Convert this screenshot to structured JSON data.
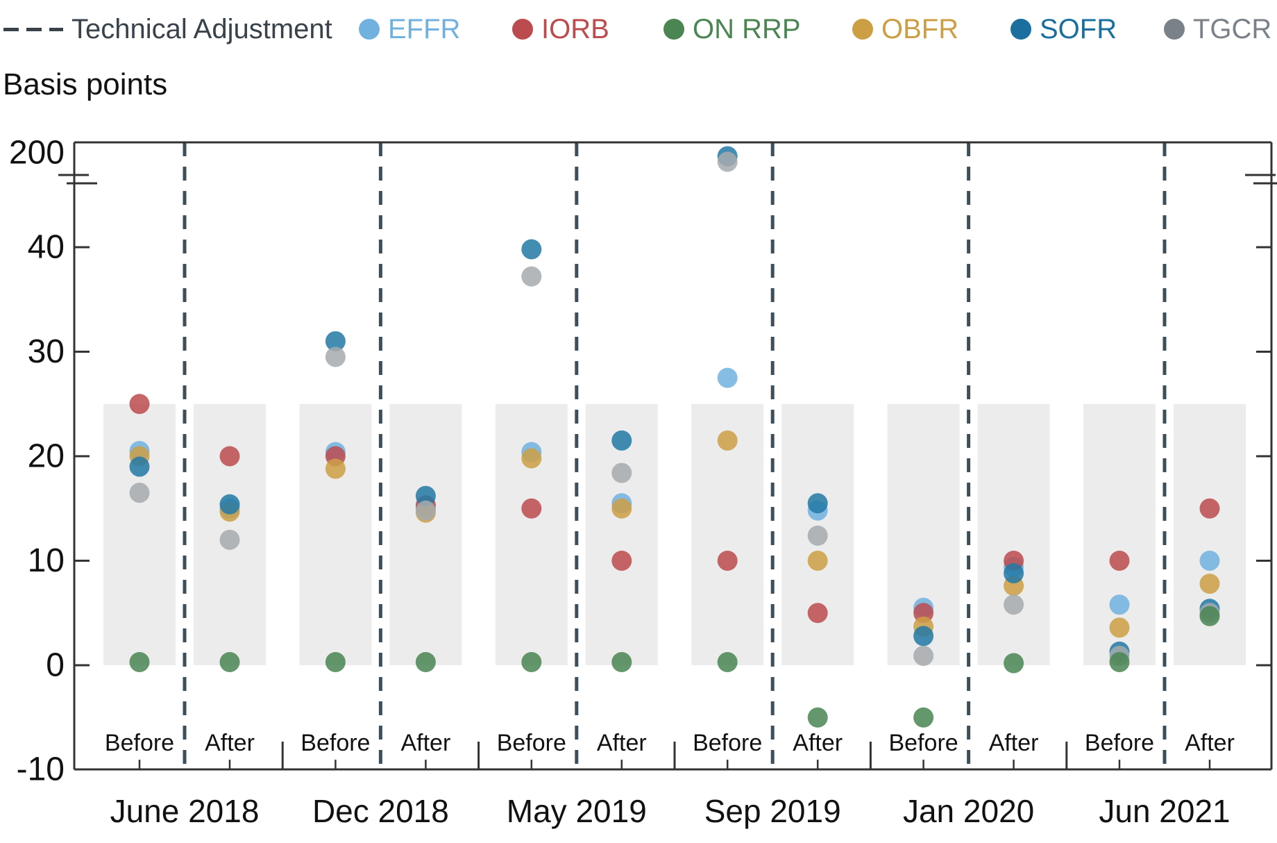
{
  "legend": {
    "technical_adjustment_label": "Technical Adjustment",
    "items": [
      {
        "id": "EFFR",
        "label": "EFFR",
        "color": "#71B1E0",
        "dot_color": "#71B1E0"
      },
      {
        "id": "IORB",
        "label": "IORB",
        "color": "#BC4B4F",
        "dot_color": "#BC4B4F"
      },
      {
        "id": "ON RRP",
        "label": "ON RRP",
        "color": "#4A8552",
        "dot_color": "#4A8552"
      },
      {
        "id": "OBFR",
        "label": "OBFR",
        "color": "#CC9F45",
        "dot_color": "#CC9F45"
      },
      {
        "id": "SOFR",
        "label": "SOFR",
        "color": "#1A6F9E",
        "dot_color": "#2279A6"
      },
      {
        "id": "TGCR",
        "label": "TGCR",
        "color": "#7A8188",
        "dot_color": "#A6AAAE"
      }
    ]
  },
  "chart_data": {
    "type": "scatter",
    "ylabel": "Basis points",
    "yticks": [
      200,
      40,
      30,
      20,
      10,
      0,
      -10
    ],
    "ylim": [
      -10,
      200
    ],
    "axis_break_between": [
      46,
      188
    ],
    "shaded_band_bp": [
      0,
      25
    ],
    "grid": false,
    "legend_position": "top",
    "column_labels": [
      "Before",
      "After"
    ],
    "series": [
      "EFFR",
      "IORB",
      "OBFR",
      "SOFR",
      "TGCR",
      "ON RRP"
    ],
    "groups": [
      {
        "date": "June 2018",
        "before": {
          "EFFR": 20.5,
          "IORB": 25,
          "ON RRP": 0.3,
          "OBFR": 20,
          "SOFR": 19,
          "TGCR": 16.5
        },
        "after": {
          "EFFR": 15,
          "IORB": 20,
          "ON RRP": 0.3,
          "OBFR": 14.7,
          "SOFR": 15.4,
          "TGCR": 12
        }
      },
      {
        "date": "Dec 2018",
        "before": {
          "EFFR": 20.4,
          "IORB": 20,
          "ON RRP": 0.3,
          "OBFR": 18.8,
          "SOFR": 31,
          "TGCR": 29.5
        },
        "after": {
          "EFFR": 15,
          "IORB": 15.3,
          "ON RRP": 0.3,
          "OBFR": 14.6,
          "SOFR": 16.2,
          "TGCR": 14.8
        }
      },
      {
        "date": "May 2019",
        "before": {
          "EFFR": 20.4,
          "IORB": 15,
          "ON RRP": 0.3,
          "OBFR": 19.8,
          "SOFR": 39.8,
          "TGCR": 37.2
        },
        "after": {
          "EFFR": 15.5,
          "IORB": 10,
          "ON RRP": 0.3,
          "OBFR": 15,
          "SOFR": 21.5,
          "TGCR": 18.4
        }
      },
      {
        "date": "Sep 2019",
        "before": {
          "EFFR": 27.5,
          "IORB": 10,
          "ON RRP": 0.3,
          "OBFR": 21.5,
          "SOFR": 195,
          "TGCR": 190
        },
        "after": {
          "EFFR": 14.8,
          "IORB": 5,
          "ON RRP": -5,
          "OBFR": 10,
          "SOFR": 15.5,
          "TGCR": 12.4
        }
      },
      {
        "date": "Jan 2020",
        "before": {
          "EFFR": 5.5,
          "IORB": 5,
          "ON RRP": -5,
          "OBFR": 3.7,
          "SOFR": 2.8,
          "TGCR": 0.9
        },
        "after": {
          "EFFR": 9.4,
          "IORB": 10,
          "ON RRP": 0.2,
          "OBFR": 7.6,
          "SOFR": 8.8,
          "TGCR": 5.8
        }
      },
      {
        "date": "Jun 2021",
        "before": {
          "EFFR": 5.8,
          "IORB": 10,
          "ON RRP": 0.3,
          "OBFR": 3.6,
          "SOFR": 1.3,
          "TGCR": 0.9
        },
        "after": {
          "EFFR": 10,
          "IORB": 15,
          "ON RRP": 4.7,
          "OBFR": 7.8,
          "SOFR": 5.4,
          "TGCR": 5
        }
      }
    ]
  }
}
